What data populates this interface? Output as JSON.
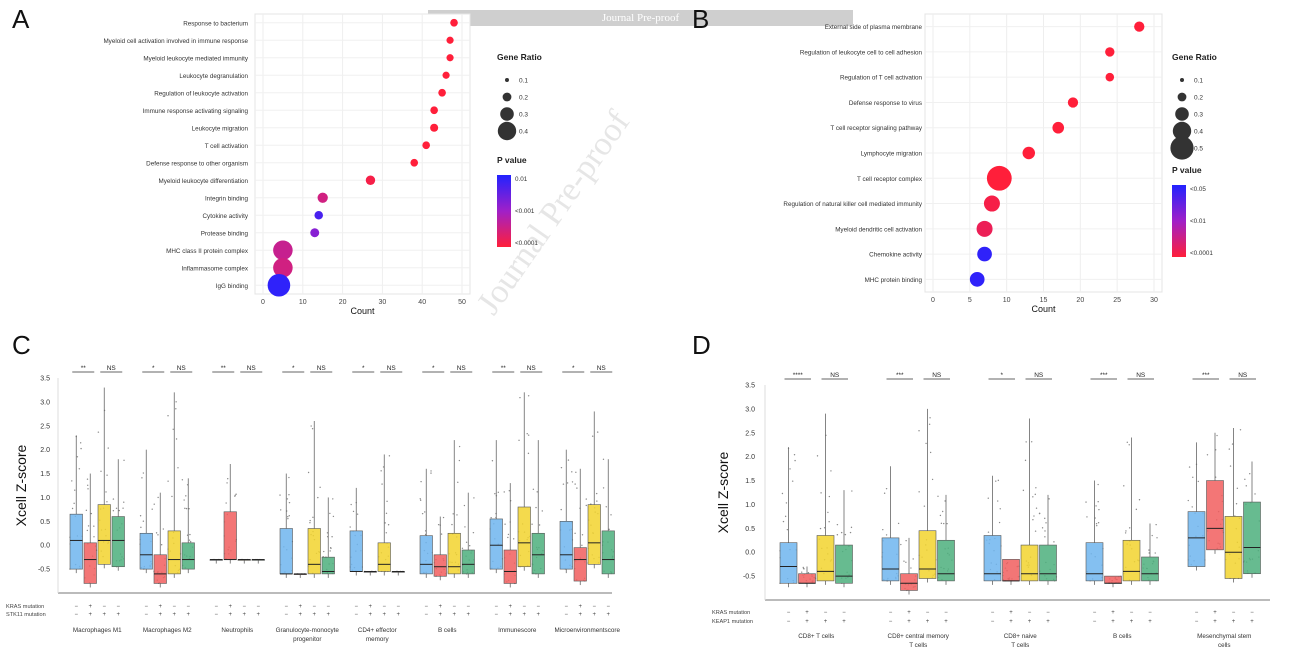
{
  "panels": {
    "a": "A",
    "b": "B",
    "c": "C",
    "d": "D"
  },
  "banner": "Journal Pre-proof",
  "watermark": "Journal Pre-proof",
  "chart_data": [
    {
      "type": "scatter",
      "panel": "A",
      "xlabel": "Count",
      "xlim": [
        0,
        50
      ],
      "xticks": [
        0,
        10,
        20,
        30,
        40,
        50
      ],
      "categories": [
        "Response to bacterium",
        "Myeloid cell activation involved in immune response",
        "Myeloid leukocyte mediated immunity",
        "Leukocyte degranulation",
        "Regulation of leukocyte activation",
        "Immune response activating signaling",
        "Leukocyte migration",
        "T cell activation",
        "Defense response to other organism",
        "Myeloid leukocyte differentiation",
        "Integrin binding",
        "Cytokine activity",
        "Protease binding",
        "MHC class II protein complex",
        "Inflammasome complex",
        "IgG binding"
      ],
      "values": [
        48,
        47,
        47,
        46,
        45,
        43,
        43,
        41,
        38,
        27,
        15,
        14,
        13,
        5,
        5,
        4
      ],
      "gene_ratio": [
        0.06,
        0.05,
        0.05,
        0.05,
        0.06,
        0.06,
        0.07,
        0.06,
        0.06,
        0.1,
        0.12,
        0.08,
        0.09,
        0.33,
        0.33,
        0.4
      ],
      "pvalue_level": [
        0,
        0,
        0,
        0,
        0,
        0,
        0,
        0,
        0,
        0.05,
        0.25,
        0.85,
        0.6,
        0.3,
        0.25,
        0.95
      ],
      "size_legend": {
        "title": "Gene Ratio",
        "labels": [
          "0.1",
          "0.2",
          "0.3",
          "0.4"
        ]
      },
      "color_legend": {
        "title": "P value",
        "labels": [
          "0.01",
          "<0.001",
          "<0.0001"
        ],
        "colors": [
          "#2222ff",
          "#ff1f3a"
        ]
      }
    },
    {
      "type": "scatter",
      "panel": "B",
      "xlabel": "Count",
      "xlim": [
        0,
        30
      ],
      "xticks": [
        0,
        5,
        10,
        15,
        20,
        25,
        30
      ],
      "categories": [
        "External side of plasma membrane",
        "Regulation of leukocyte cell to cell adhesion",
        "Regulation of T cell activation",
        "Defense response to virus",
        "T cell receptor signaling pathway",
        "Lymphocyte migration",
        "T cell receptor complex",
        "Regulation of natural killer cell mediated immunity",
        "Myeloid dendritic cell activation",
        "Chemokine activity",
        "MHC protein binding"
      ],
      "values": [
        28,
        24,
        24,
        19,
        17,
        13,
        9,
        8,
        7,
        7,
        6
      ],
      "gene_ratio": [
        0.12,
        0.1,
        0.08,
        0.12,
        0.15,
        0.17,
        0.45,
        0.25,
        0.25,
        0.22,
        0.22
      ],
      "pvalue_level": [
        0,
        0,
        0,
        0,
        0,
        0,
        0,
        0.05,
        0.1,
        0.95,
        0.95
      ],
      "size_legend": {
        "title": "Gene Ratio",
        "labels": [
          "0.1",
          "0.2",
          "0.3",
          "0.4",
          "0.5"
        ]
      },
      "color_legend": {
        "title": "P value",
        "labels": [
          "<0.05",
          "<0.01",
          "<0.0001"
        ],
        "colors": [
          "#2222ff",
          "#ff1f3a"
        ]
      }
    },
    {
      "type": "box",
      "panel": "C",
      "ylabel": "Xcell Z-score",
      "ylim": [
        -1,
        3.5
      ],
      "yticks": [
        "3.5",
        "3.0",
        "2.5",
        "2.0",
        "1.5",
        "1.0",
        "0.5",
        "0.0",
        "-0.5"
      ],
      "row_labels": [
        "KRAS mutation",
        "STK11 mutation"
      ],
      "row_markers": [
        "−",
        "−",
        "+",
        "+",
        "−",
        "+",
        "−",
        "+"
      ],
      "series_colors": [
        "#6fb5ee",
        "#f15e5e",
        "#f2d32e",
        "#4caf7d"
      ],
      "groups": [
        {
          "label": "Macrophages M1",
          "sig": [
            "**",
            "NS"
          ],
          "boxes": [
            [
              -0.5,
              0.1,
              0.65
            ],
            [
              -0.8,
              -0.3,
              0.05
            ],
            [
              -0.4,
              0.1,
              0.85
            ],
            [
              -0.45,
              0.1,
              0.6
            ]
          ],
          "whisker_top": [
            2.3,
            1.5,
            3.3,
            1.8
          ]
        },
        {
          "label": "Macrophages M2",
          "sig": [
            "*",
            "NS"
          ],
          "boxes": [
            [
              -0.5,
              -0.2,
              0.25
            ],
            [
              -0.8,
              -0.6,
              -0.2
            ],
            [
              -0.6,
              -0.3,
              0.3
            ],
            [
              -0.5,
              -0.3,
              0.05
            ]
          ],
          "whisker_top": [
            2.0,
            1.1,
            3.2,
            1.4
          ]
        },
        {
          "label": "Neutrophils",
          "sig": [
            "**",
            "NS"
          ],
          "boxes": [
            [
              -0.3,
              -0.3,
              -0.3
            ],
            [
              -0.3,
              -0.3,
              0.7
            ],
            [
              -0.3,
              -0.3,
              -0.3
            ],
            [
              -0.3,
              -0.3,
              -0.3
            ]
          ],
          "whisker_top": [
            -0.3,
            1.7,
            -0.3,
            -0.3
          ]
        },
        {
          "label": "Granulocyte-monocyte progenitor",
          "sig": [
            "*",
            "NS"
          ],
          "boxes": [
            [
              -0.6,
              -0.6,
              0.35
            ],
            [
              -0.6,
              -0.6,
              -0.6
            ],
            [
              -0.6,
              -0.4,
              0.35
            ],
            [
              -0.6,
              -0.55,
              -0.25
            ]
          ],
          "whisker_top": [
            1.5,
            -0.6,
            2.6,
            1.0
          ]
        },
        {
          "label": "CD4+ effector memory",
          "sig": [
            "*",
            "NS"
          ],
          "boxes": [
            [
              -0.55,
              -0.55,
              0.3
            ],
            [
              -0.55,
              -0.55,
              -0.55
            ],
            [
              -0.55,
              -0.4,
              0.05
            ],
            [
              -0.55,
              -0.55,
              -0.55
            ]
          ],
          "whisker_top": [
            1.2,
            -0.55,
            1.9,
            -0.55
          ]
        },
        {
          "label": "B cells",
          "sig": [
            "*",
            "NS"
          ],
          "boxes": [
            [
              -0.6,
              -0.4,
              0.2
            ],
            [
              -0.65,
              -0.45,
              -0.2
            ],
            [
              -0.6,
              -0.45,
              0.25
            ],
            [
              -0.6,
              -0.4,
              -0.1
            ]
          ],
          "whisker_top": [
            1.6,
            0.6,
            2.2,
            1.1
          ]
        },
        {
          "label": "Immunescore",
          "sig": [
            "**",
            "NS"
          ],
          "boxes": [
            [
              -0.5,
              0.0,
              0.55
            ],
            [
              -0.8,
              -0.55,
              -0.1
            ],
            [
              -0.45,
              0.05,
              0.8
            ],
            [
              -0.6,
              -0.2,
              0.25
            ]
          ],
          "whisker_top": [
            2.2,
            1.3,
            3.2,
            2.2
          ]
        },
        {
          "label": "Microenvironmentscore",
          "sig": [
            "*",
            "NS"
          ],
          "boxes": [
            [
              -0.5,
              -0.2,
              0.5
            ],
            [
              -0.75,
              -0.3,
              -0.05
            ],
            [
              -0.4,
              0.05,
              0.85
            ],
            [
              -0.6,
              -0.3,
              0.3
            ]
          ],
          "whisker_top": [
            2.0,
            1.6,
            2.8,
            1.8
          ]
        }
      ]
    },
    {
      "type": "box",
      "panel": "D",
      "ylabel": "Xcell Z-score",
      "ylim": [
        -1,
        3.5
      ],
      "yticks": [
        "3.5",
        "3.0",
        "2.5",
        "2.0",
        "1.5",
        "1.0",
        "0.5",
        "0.0",
        "-0.5"
      ],
      "row_labels": [
        "KRAS mutation",
        "KEAP1 mutation"
      ],
      "row_markers": [
        "−",
        "−",
        "+",
        "+",
        "−",
        "+",
        "−",
        "+"
      ],
      "series_colors": [
        "#6fb5ee",
        "#f15e5e",
        "#f2d32e",
        "#4caf7d"
      ],
      "groups": [
        {
          "label": "CD8+ T cells",
          "sig": [
            "****",
            "NS"
          ],
          "boxes": [
            [
              -0.65,
              -0.3,
              0.2
            ],
            [
              -0.65,
              -0.65,
              -0.45
            ],
            [
              -0.6,
              -0.4,
              0.35
            ],
            [
              -0.65,
              -0.5,
              0.15
            ]
          ],
          "whisker_top": [
            2.2,
            -0.3,
            2.9,
            1.3
          ]
        },
        {
          "label": "CD8+ central memory T cells",
          "sig": [
            "***",
            "NS"
          ],
          "boxes": [
            [
              -0.6,
              -0.35,
              0.3
            ],
            [
              -0.8,
              -0.65,
              -0.45
            ],
            [
              -0.55,
              -0.35,
              0.45
            ],
            [
              -0.6,
              -0.45,
              0.25
            ]
          ],
          "whisker_top": [
            1.8,
            0.3,
            3.0,
            1.2
          ]
        },
        {
          "label": "CD8+ naive T cells",
          "sig": [
            "*",
            "NS"
          ],
          "boxes": [
            [
              -0.6,
              -0.45,
              0.35
            ],
            [
              -0.6,
              -0.6,
              -0.15
            ],
            [
              -0.6,
              -0.45,
              0.15
            ],
            [
              -0.6,
              -0.45,
              0.15
            ]
          ],
          "whisker_top": [
            1.6,
            -0.15,
            2.8,
            1.2
          ]
        },
        {
          "label": "B cells",
          "sig": [
            "***",
            "NS"
          ],
          "boxes": [
            [
              -0.6,
              -0.45,
              0.2
            ],
            [
              -0.65,
              -0.65,
              -0.5
            ],
            [
              -0.6,
              -0.4,
              0.25
            ],
            [
              -0.6,
              -0.45,
              -0.1
            ]
          ],
          "whisker_top": [
            1.5,
            -0.5,
            2.4,
            0.6
          ]
        },
        {
          "label": "Mesenchymal stem cells",
          "sig": [
            "***",
            "NS"
          ],
          "boxes": [
            [
              -0.3,
              0.3,
              0.85
            ],
            [
              0.05,
              0.5,
              1.5
            ],
            [
              -0.55,
              0.0,
              0.75
            ],
            [
              -0.45,
              0.1,
              1.05
            ]
          ],
          "whisker_top": [
            2.3,
            2.5,
            2.6,
            1.9
          ]
        }
      ]
    }
  ]
}
